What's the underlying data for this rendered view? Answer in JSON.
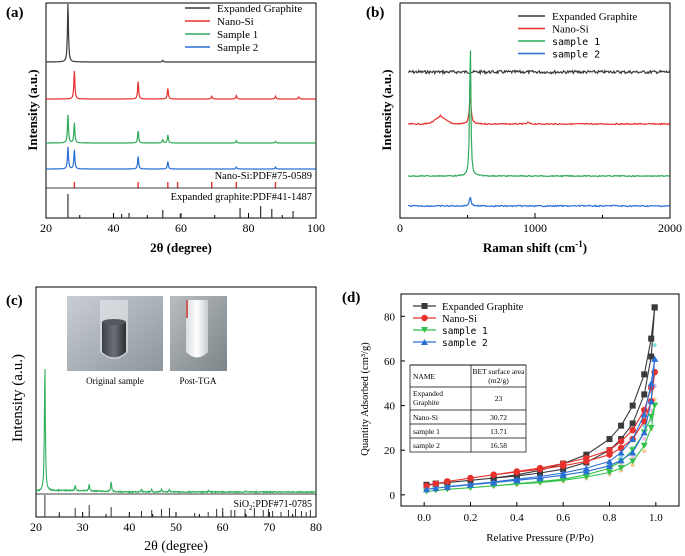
{
  "panels": {
    "a": {
      "label": "(a)",
      "xlabel": "2θ (degree)",
      "ylabel": "Intensity (a.u.)",
      "xlim": [
        20,
        100
      ],
      "xticks": [
        "20",
        "40",
        "60",
        "80",
        "100"
      ],
      "legend": [
        "Expanded Graphite",
        "Nano-Si",
        "Sample 1",
        "Sample 2"
      ],
      "ref_labels": [
        "Nano-Si:PDF#75-0589",
        "Expanded graphite:PDF#41-1487"
      ]
    },
    "b": {
      "label": "(b)",
      "xlabel": "Raman shift (cm",
      "xlabel_sup": "-1",
      "xlabel_end": ")",
      "ylabel": "Intensity (a.u.)",
      "xlim": [
        0,
        2000
      ],
      "xticks": [
        "0",
        "1000",
        "2000"
      ],
      "legend": [
        "Expanded Graphite",
        "Nano-Si",
        "sample 1",
        "sample 2"
      ]
    },
    "c": {
      "label": "(c)",
      "xlabel": "2θ (degree)",
      "ylabel": "Intensity (a.u.)",
      "xlim": [
        20,
        80
      ],
      "xticks": [
        "20",
        "30",
        "40",
        "50",
        "60",
        "70",
        "80"
      ],
      "photo_captions": [
        "Original sample",
        "Post-TGA"
      ],
      "ref_label": "SiO",
      "ref_label_sub": "2",
      "ref_label_end": ":PDF#71-0785"
    },
    "d": {
      "label": "(d)",
      "xlabel": "Relative Pressure (P/Po)",
      "ylabel": "Quantity Adsorbed (cm³/g)",
      "xlim": [
        -0.1,
        1.1
      ],
      "ylim": [
        -5,
        90
      ],
      "xticks": [
        "0.0",
        "0.2",
        "0.4",
        "0.6",
        "0.8",
        "1.0"
      ],
      "yticks": [
        "0",
        "20",
        "40",
        "60",
        "80"
      ],
      "legend": [
        "Expanded Graphite",
        "Nano-Si",
        "sample 1",
        "sample 2"
      ],
      "table": {
        "headers": [
          "NAME",
          "BET surface area (m2/g)"
        ],
        "rows": [
          [
            "Expanded Graphite",
            "23"
          ],
          [
            "Nano-Si",
            "30.72"
          ],
          [
            "sample 1",
            "13.71"
          ],
          [
            "sample 2",
            "16.58"
          ]
        ]
      }
    }
  },
  "colors": {
    "graphite": "#3a3a3a",
    "nanosi": "#e8302c",
    "sample1": "#2faa5a",
    "sample2": "#2a6fd6",
    "d_graphite": "#3a3a3a",
    "d_nanosi": "#e8302c",
    "d_sample1": "#33c34a",
    "d_sample2": "#2a6fd6",
    "ref_nanosi": "#e8302c",
    "ref_graphite": "#333333",
    "xrd_c": "#2fae5c"
  },
  "chart_data": [
    {
      "type": "line",
      "panel": "a",
      "xlabel": "2θ (degree)",
      "ylabel": "Intensity (a.u.)",
      "x_range": [
        20,
        100
      ],
      "series": [
        {
          "name": "Expanded Graphite",
          "peaks": [
            [
              26.5,
              1.0
            ],
            [
              54.6,
              0.03
            ]
          ]
        },
        {
          "name": "Nano-Si",
          "peaks": [
            [
              28.4,
              0.4
            ],
            [
              47.3,
              0.25
            ],
            [
              56.1,
              0.15
            ],
            [
              69.1,
              0.04
            ],
            [
              76.4,
              0.05
            ],
            [
              88.0,
              0.04
            ],
            [
              94.9,
              0.03
            ]
          ]
        },
        {
          "name": "Sample 1",
          "peaks": [
            [
              26.5,
              0.35
            ],
            [
              28.4,
              0.25
            ],
            [
              47.3,
              0.15
            ],
            [
              54.6,
              0.04
            ],
            [
              56.1,
              0.1
            ],
            [
              76.4,
              0.03
            ],
            [
              88.0,
              0.02
            ]
          ]
        },
        {
          "name": "Sample 2",
          "peaks": [
            [
              26.5,
              0.35
            ],
            [
              28.4,
              0.3
            ],
            [
              47.3,
              0.2
            ],
            [
              56.1,
              0.12
            ],
            [
              76.4,
              0.03
            ],
            [
              88.0,
              0.03
            ]
          ]
        }
      ],
      "reference_peaks": {
        "Nano-Si:PDF#75-0589": [
          28.4,
          47.3,
          56.1,
          59.0,
          69.1,
          76.4,
          88.0
        ],
        "Expanded graphite:PDF#41-1487": [
          26.5,
          42.4,
          44.6,
          54.6,
          59.8,
          77.5,
          83.6,
          86.9,
          93.2
        ]
      }
    },
    {
      "type": "line",
      "panel": "b",
      "xlabel": "Raman shift (cm-1)",
      "ylabel": "Intensity (a.u.)",
      "x_range": [
        0,
        2000
      ],
      "series": [
        {
          "name": "Expanded Graphite",
          "peaks": [
            [
              1580,
              0.02
            ]
          ]
        },
        {
          "name": "Nano-Si",
          "peaks": [
            [
              520,
              0.5
            ],
            [
              300,
              0.05
            ],
            [
              950,
              0.03
            ]
          ]
        },
        {
          "name": "sample 1",
          "peaks": [
            [
              520,
              1.0
            ]
          ]
        },
        {
          "name": "sample 2",
          "peaks": [
            [
              520,
              0.3
            ],
            [
              1350,
              0.03
            ],
            [
              1580,
              0.03
            ]
          ]
        }
      ]
    },
    {
      "type": "line",
      "panel": "c",
      "xlabel": "2θ (degree)",
      "ylabel": "Intensity (a.u.)",
      "x_range": [
        20,
        80
      ],
      "series": [
        {
          "name": "",
          "peaks": [
            [
              21.9,
              1.0
            ],
            [
              28.4,
              0.04
            ],
            [
              31.4,
              0.05
            ],
            [
              36.1,
              0.08
            ],
            [
              42.6,
              0.02
            ],
            [
              44.8,
              0.02
            ],
            [
              46.9,
              0.02
            ],
            [
              48.6,
              0.02
            ],
            [
              57.0,
              0.01
            ],
            [
              65.0,
              0.01
            ]
          ]
        }
      ],
      "reference_peaks": {
        "SiO2:PDF#71-0785": [
          21.9,
          25.0,
          28.4,
          31.4,
          36.1,
          42.6,
          44.8,
          46.9,
          48.6,
          54.0,
          56.9,
          58.7,
          60.0,
          61.8,
          62.6,
          64.8,
          66.8,
          68.7,
          69.8,
          70.7,
          72.5,
          74.1,
          75.6,
          76.9,
          77.9,
          78.8
        ]
      }
    },
    {
      "type": "line",
      "panel": "d",
      "xlabel": "Relative Pressure (P/Po)",
      "ylabel": "Quantity Adsorbed (cm³/g)",
      "x_range": [
        -0.1,
        1.1
      ],
      "y_range": [
        -5,
        90
      ],
      "series": [
        {
          "name": "Expanded Graphite",
          "adsorption": [
            [
              0.01,
              4.5
            ],
            [
              0.05,
              5.0
            ],
            [
              0.1,
              5.5
            ],
            [
              0.2,
              6.5
            ],
            [
              0.3,
              7.5
            ],
            [
              0.4,
              8.5
            ],
            [
              0.5,
              9.8
            ],
            [
              0.6,
              11.5
            ],
            [
              0.7,
              14.5
            ],
            [
              0.8,
              20
            ],
            [
              0.85,
              25
            ],
            [
              0.9,
              32
            ],
            [
              0.95,
              45
            ],
            [
              0.98,
              62
            ],
            [
              0.995,
              84
            ]
          ],
          "desorption": [
            [
              0.995,
              84
            ],
            [
              0.98,
              70
            ],
            [
              0.95,
              54
            ],
            [
              0.9,
              40
            ],
            [
              0.85,
              31
            ],
            [
              0.8,
              25
            ],
            [
              0.7,
              18
            ],
            [
              0.6,
              14
            ],
            [
              0.5,
              11
            ],
            [
              0.4,
              9
            ],
            [
              0.3,
              7.5
            ],
            [
              0.2,
              6.5
            ],
            [
              0.1,
              5.5
            ],
            [
              0.05,
              5
            ]
          ]
        },
        {
          "name": "Nano-Si",
          "adsorption": [
            [
              0.01,
              4.0
            ],
            [
              0.05,
              5.0
            ],
            [
              0.1,
              6.0
            ],
            [
              0.2,
              7.5
            ],
            [
              0.3,
              9.0
            ],
            [
              0.4,
              10.2
            ],
            [
              0.5,
              11.5
            ],
            [
              0.6,
              13
            ],
            [
              0.7,
              15
            ],
            [
              0.8,
              18
            ],
            [
              0.85,
              21
            ],
            [
              0.9,
              25
            ],
            [
              0.95,
              33
            ],
            [
              0.98,
              42
            ],
            [
              0.995,
              55
            ]
          ],
          "desorption": [
            [
              0.995,
              55
            ],
            [
              0.98,
              48
            ],
            [
              0.95,
              38
            ],
            [
              0.9,
              29
            ],
            [
              0.85,
              24
            ],
            [
              0.8,
              20
            ],
            [
              0.7,
              16.5
            ],
            [
              0.6,
              14
            ],
            [
              0.5,
              12
            ],
            [
              0.4,
              10.5
            ],
            [
              0.3,
              9
            ],
            [
              0.2,
              7.5
            ],
            [
              0.1,
              6
            ]
          ]
        },
        {
          "name": "sample 1",
          "adsorption": [
            [
              0.01,
              1.5
            ],
            [
              0.05,
              2.0
            ],
            [
              0.1,
              2.5
            ],
            [
              0.2,
              3.2
            ],
            [
              0.3,
              4.0
            ],
            [
              0.4,
              4.8
            ],
            [
              0.5,
              5.5
            ],
            [
              0.6,
              6.5
            ],
            [
              0.7,
              8
            ],
            [
              0.8,
              10
            ],
            [
              0.85,
              12
            ],
            [
              0.9,
              15
            ],
            [
              0.95,
              22
            ],
            [
              0.98,
              30
            ],
            [
              0.995,
              40
            ]
          ],
          "desorption": [
            [
              0.995,
              40
            ],
            [
              0.98,
              35
            ],
            [
              0.95,
              28
            ],
            [
              0.9,
              20
            ],
            [
              0.85,
              15
            ],
            [
              0.8,
              12
            ],
            [
              0.7,
              9
            ],
            [
              0.6,
              7
            ],
            [
              0.5,
              6
            ],
            [
              0.4,
              5
            ],
            [
              0.3,
              4
            ],
            [
              0.2,
              3.2
            ],
            [
              0.1,
              2.5
            ]
          ]
        },
        {
          "name": "sample 2",
          "adsorption": [
            [
              0.01,
              2.5
            ],
            [
              0.05,
              3.0
            ],
            [
              0.1,
              3.5
            ],
            [
              0.2,
              4.5
            ],
            [
              0.3,
              5.5
            ],
            [
              0.4,
              6.5
            ],
            [
              0.5,
              7.5
            ],
            [
              0.6,
              8.8
            ],
            [
              0.7,
              10.5
            ],
            [
              0.8,
              13
            ],
            [
              0.85,
              15.5
            ],
            [
              0.9,
              19
            ],
            [
              0.95,
              28
            ],
            [
              0.98,
              42
            ],
            [
              0.995,
              61
            ]
          ],
          "desorption": [
            [
              0.995,
              61
            ],
            [
              0.98,
              50
            ],
            [
              0.95,
              36
            ],
            [
              0.9,
              25
            ],
            [
              0.85,
              19
            ],
            [
              0.8,
              15
            ],
            [
              0.7,
              12
            ],
            [
              0.6,
              9.8
            ],
            [
              0.5,
              8.2
            ],
            [
              0.4,
              7
            ],
            [
              0.3,
              5.8
            ],
            [
              0.2,
              4.7
            ],
            [
              0.1,
              3.7
            ]
          ]
        }
      ]
    }
  ]
}
